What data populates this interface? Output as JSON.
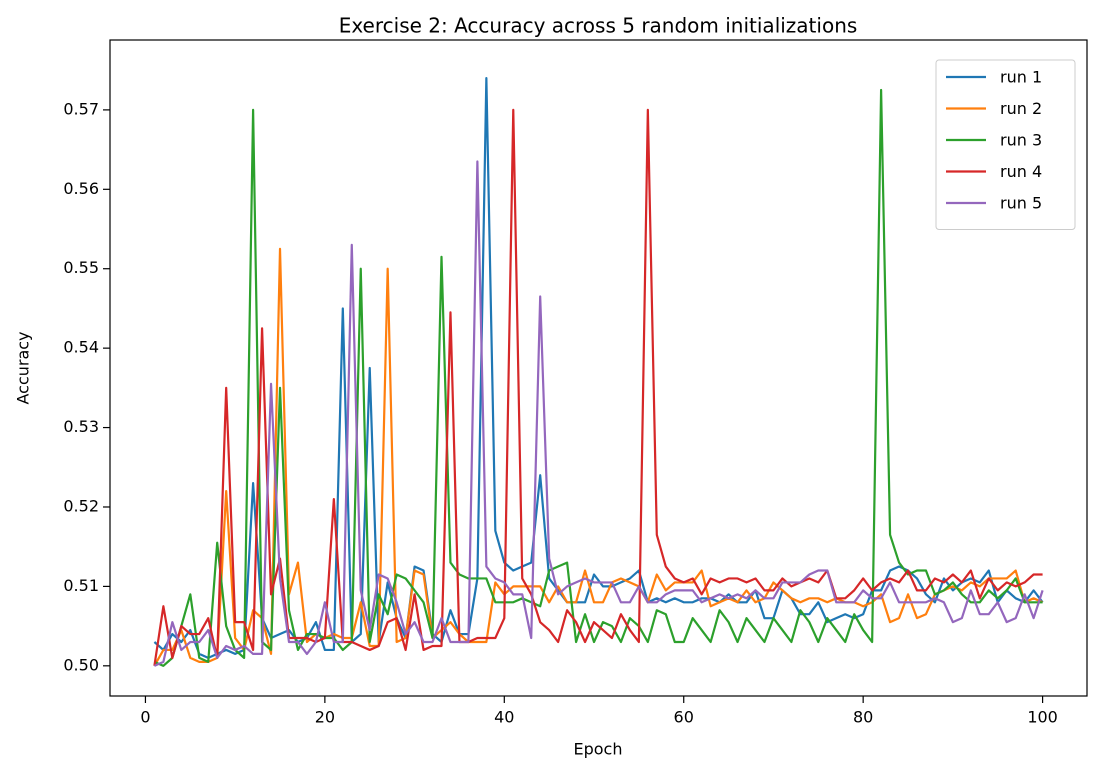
{
  "chart_data": {
    "type": "line",
    "title": "Exercise 2: Accuracy across 5 random initializations",
    "xlabel": "Epoch",
    "ylabel": "Accuracy",
    "x": [
      1,
      2,
      3,
      4,
      5,
      6,
      7,
      8,
      9,
      10,
      11,
      12,
      13,
      14,
      15,
      16,
      17,
      18,
      19,
      20,
      21,
      22,
      23,
      24,
      25,
      26,
      27,
      28,
      29,
      30,
      31,
      32,
      33,
      34,
      35,
      36,
      37,
      38,
      39,
      40,
      41,
      42,
      43,
      44,
      45,
      46,
      47,
      48,
      49,
      50,
      51,
      52,
      53,
      54,
      55,
      56,
      57,
      58,
      59,
      60,
      61,
      62,
      63,
      64,
      65,
      66,
      67,
      68,
      69,
      70,
      71,
      72,
      73,
      74,
      75,
      76,
      77,
      78,
      79,
      80,
      81,
      82,
      83,
      84,
      85,
      86,
      87,
      88,
      89,
      90,
      91,
      92,
      93,
      94,
      95,
      96,
      97,
      98,
      99,
      100
    ],
    "xlim": [
      -3.95,
      104.95
    ],
    "ylim": [
      0.4962,
      0.5788
    ],
    "xticks": [
      0,
      20,
      40,
      60,
      80,
      100
    ],
    "yticks": [
      {
        "value": 0.5,
        "label": "0.50"
      },
      0.51,
      0.52,
      0.53,
      0.54,
      0.55,
      0.56,
      0.57
    ],
    "legend": "upper right",
    "series": [
      {
        "name": "run 1",
        "color": "#1f77b4",
        "values": [
          0.503,
          0.502,
          0.504,
          0.503,
          0.5045,
          0.5015,
          0.501,
          0.5015,
          0.502,
          0.5015,
          0.502,
          0.523,
          0.506,
          0.5035,
          0.504,
          0.5045,
          0.503,
          0.5035,
          0.5055,
          0.502,
          0.502,
          0.545,
          0.503,
          0.504,
          0.5375,
          0.503,
          0.5105,
          0.506,
          0.5035,
          0.5125,
          0.512,
          0.504,
          0.503,
          0.507,
          0.504,
          0.504,
          0.511,
          0.574,
          0.517,
          0.513,
          0.512,
          0.5125,
          0.513,
          0.524,
          0.511,
          0.5095,
          0.508,
          0.508,
          0.508,
          0.5115,
          0.51,
          0.51,
          0.5105,
          0.511,
          0.512,
          0.508,
          0.5085,
          0.508,
          0.5085,
          0.508,
          0.508,
          0.5085,
          0.5085,
          0.508,
          0.509,
          0.508,
          0.508,
          0.5095,
          0.506,
          0.506,
          0.5095,
          0.5085,
          0.5065,
          0.5065,
          0.508,
          0.5055,
          0.506,
          0.5065,
          0.506,
          0.5065,
          0.5095,
          0.5095,
          0.512,
          0.5125,
          0.512,
          0.511,
          0.509,
          0.508,
          0.511,
          0.5095,
          0.5105,
          0.511,
          0.5105,
          0.512,
          0.508,
          0.5095,
          0.5085,
          0.508,
          0.5095,
          0.508
        ]
      },
      {
        "name": "run 2",
        "color": "#ff7f0e",
        "values": [
          0.5,
          0.502,
          0.502,
          0.5045,
          0.501,
          0.5005,
          0.5005,
          0.501,
          0.522,
          0.5035,
          0.502,
          0.507,
          0.506,
          0.5015,
          0.5525,
          0.509,
          0.513,
          0.503,
          0.504,
          0.5035,
          0.504,
          0.5035,
          0.5035,
          0.508,
          0.5025,
          0.5025,
          0.55,
          0.503,
          0.5035,
          0.512,
          0.5115,
          0.5035,
          0.5045,
          0.5055,
          0.504,
          0.503,
          0.503,
          0.503,
          0.5105,
          0.509,
          0.51,
          0.51,
          0.51,
          0.51,
          0.508,
          0.51,
          0.508,
          0.508,
          0.512,
          0.508,
          0.508,
          0.5105,
          0.511,
          0.5105,
          0.51,
          0.508,
          0.5115,
          0.5095,
          0.5105,
          0.5105,
          0.5105,
          0.512,
          0.5075,
          0.508,
          0.5085,
          0.508,
          0.5095,
          0.508,
          0.5085,
          0.5105,
          0.5095,
          0.5085,
          0.508,
          0.5085,
          0.5085,
          0.508,
          0.5085,
          0.508,
          0.508,
          0.5075,
          0.508,
          0.509,
          0.5055,
          0.506,
          0.509,
          0.506,
          0.5065,
          0.509,
          0.5095,
          0.51,
          0.5095,
          0.5105,
          0.51,
          0.511,
          0.511,
          0.511,
          0.512,
          0.508,
          0.5085,
          0.508
        ]
      },
      {
        "name": "run 3",
        "color": "#2ca02c",
        "values": [
          0.5005,
          0.5,
          0.501,
          0.505,
          0.509,
          0.501,
          0.5005,
          0.5155,
          0.505,
          0.502,
          0.501,
          0.57,
          0.503,
          0.502,
          0.535,
          0.507,
          0.502,
          0.504,
          0.504,
          0.5035,
          0.5035,
          0.502,
          0.503,
          0.55,
          0.503,
          0.509,
          0.5065,
          0.5115,
          0.511,
          0.5095,
          0.508,
          0.5035,
          0.5515,
          0.513,
          0.5115,
          0.511,
          0.511,
          0.511,
          0.508,
          0.508,
          0.508,
          0.5085,
          0.508,
          0.5075,
          0.512,
          0.5125,
          0.513,
          0.503,
          0.5065,
          0.503,
          0.5055,
          0.505,
          0.503,
          0.506,
          0.505,
          0.503,
          0.507,
          0.5065,
          0.503,
          0.503,
          0.506,
          0.5045,
          0.503,
          0.507,
          0.5055,
          0.503,
          0.506,
          0.5045,
          0.503,
          0.506,
          0.5045,
          0.503,
          0.507,
          0.5055,
          0.503,
          0.506,
          0.5045,
          0.503,
          0.5065,
          0.5045,
          0.503,
          0.5725,
          0.5165,
          0.513,
          0.5115,
          0.512,
          0.512,
          0.509,
          0.5095,
          0.5105,
          0.509,
          0.508,
          0.508,
          0.5095,
          0.5085,
          0.5095,
          0.511,
          0.508,
          0.508,
          0.508
        ]
      },
      {
        "name": "run 4",
        "color": "#d62728",
        "values": [
          0.5,
          0.5075,
          0.501,
          0.505,
          0.504,
          0.504,
          0.506,
          0.501,
          0.535,
          0.5055,
          0.5055,
          0.502,
          0.5425,
          0.509,
          0.5135,
          0.5035,
          0.5035,
          0.5035,
          0.503,
          0.5035,
          0.521,
          0.503,
          0.503,
          0.5025,
          0.502,
          0.5025,
          0.5055,
          0.506,
          0.502,
          0.509,
          0.502,
          0.5025,
          0.5025,
          0.5445,
          0.503,
          0.503,
          0.5035,
          0.5035,
          0.5035,
          0.506,
          0.57,
          0.511,
          0.509,
          0.5055,
          0.5045,
          0.503,
          0.507,
          0.5055,
          0.503,
          0.5055,
          0.5045,
          0.5035,
          0.5065,
          0.5045,
          0.503,
          0.57,
          0.5165,
          0.5125,
          0.511,
          0.5105,
          0.511,
          0.509,
          0.511,
          0.5105,
          0.511,
          0.511,
          0.5105,
          0.511,
          0.5095,
          0.5095,
          0.511,
          0.51,
          0.5105,
          0.511,
          0.5105,
          0.512,
          0.5085,
          0.5085,
          0.5095,
          0.511,
          0.5095,
          0.5105,
          0.511,
          0.5105,
          0.512,
          0.5095,
          0.5095,
          0.511,
          0.5105,
          0.5115,
          0.5105,
          0.512,
          0.5085,
          0.511,
          0.5095,
          0.5105,
          0.51,
          0.5105,
          0.5115,
          0.5115
        ]
      },
      {
        "name": "run 5",
        "color": "#9467bd",
        "values": [
          0.5,
          0.5005,
          0.5055,
          0.502,
          0.503,
          0.503,
          0.5045,
          0.501,
          0.5025,
          0.502,
          0.5025,
          0.5015,
          0.5015,
          0.5355,
          0.511,
          0.503,
          0.503,
          0.5015,
          0.503,
          0.508,
          0.503,
          0.503,
          0.553,
          0.5095,
          0.5045,
          0.5115,
          0.511,
          0.508,
          0.504,
          0.5055,
          0.503,
          0.503,
          0.506,
          0.503,
          0.503,
          0.503,
          0.5635,
          0.5125,
          0.511,
          0.5105,
          0.509,
          0.509,
          0.5035,
          0.5465,
          0.5135,
          0.509,
          0.51,
          0.5105,
          0.511,
          0.5105,
          0.5105,
          0.5105,
          0.508,
          0.508,
          0.51,
          0.508,
          0.508,
          0.509,
          0.5095,
          0.5095,
          0.5095,
          0.508,
          0.5085,
          0.509,
          0.5085,
          0.509,
          0.5085,
          0.5095,
          0.5085,
          0.5085,
          0.5105,
          0.5105,
          0.5105,
          0.5115,
          0.512,
          0.512,
          0.508,
          0.508,
          0.508,
          0.5095,
          0.5085,
          0.5085,
          0.5105,
          0.508,
          0.508,
          0.508,
          0.508,
          0.5085,
          0.508,
          0.5055,
          0.506,
          0.5095,
          0.5065,
          0.5065,
          0.508,
          0.5055,
          0.506,
          0.509,
          0.506,
          0.5095
        ]
      }
    ]
  }
}
